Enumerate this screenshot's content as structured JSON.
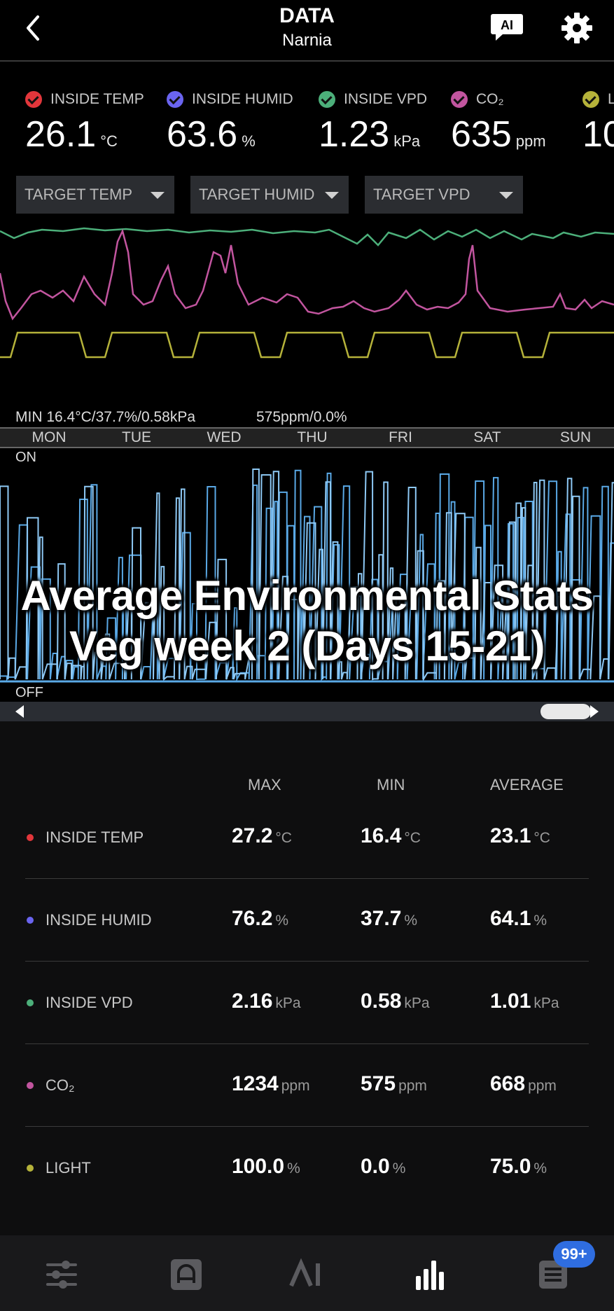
{
  "header": {
    "title": "DATA",
    "subtitle": "Narnia",
    "back_icon": "chevron-left-icon",
    "ai_icon": "ai-chat-icon",
    "settings_icon": "gear-icon"
  },
  "metrics": [
    {
      "label": "INSIDE TEMP",
      "value": "26.1",
      "unit": "°C",
      "color": "#e2363b"
    },
    {
      "label": "INSIDE HUMID",
      "value": "63.6",
      "unit": "%",
      "color": "#6a64f0"
    },
    {
      "label": "INSIDE VPD",
      "value": "1.23",
      "unit": "kPa",
      "color": "#4caf7a"
    },
    {
      "label": "CO₂",
      "value": "635",
      "unit": "ppm",
      "color": "#c2559f"
    },
    {
      "label": "L",
      "value": "10",
      "unit": "",
      "color": "#b5b23a"
    }
  ],
  "targets": [
    {
      "label": "TARGET TEMP"
    },
    {
      "label": "TARGET HUMID"
    },
    {
      "label": "TARGET VPD"
    }
  ],
  "chart": {
    "min_summary": "MIN 16.4°C/37.7%/0.58kPa",
    "min_summary_2": "575ppm/0.0%",
    "days": [
      "MON",
      "TUE",
      "WED",
      "THU",
      "FRI",
      "SAT",
      "SUN"
    ],
    "on_label": "ON",
    "off_label": "OFF"
  },
  "chart_data": {
    "type": "line",
    "categories": [
      "MON",
      "TUE",
      "WED",
      "THU",
      "FRI",
      "SAT",
      "SUN"
    ],
    "series": [
      {
        "name": "INSIDE VPD",
        "color": "#4caf7a"
      },
      {
        "name": "CO₂",
        "color": "#c2559f"
      },
      {
        "name": "LIGHT",
        "color": "#b5b23a"
      }
    ],
    "device_chart": {
      "type": "step",
      "labels": [
        "ON",
        "OFF"
      ],
      "colors": [
        "#5aa9e6",
        "#8ec9f5"
      ]
    }
  },
  "overlay": {
    "line1": "Average Environmental Stats",
    "line2": "Veg week 2 (Days 15-21)"
  },
  "stats": {
    "headers": {
      "max": "MAX",
      "min": "MIN",
      "avg": "AVERAGE"
    },
    "rows": [
      {
        "label": "INSIDE TEMP",
        "color": "#e2363b",
        "max": "27.2",
        "min": "16.4",
        "avg": "23.1",
        "unit": "°C"
      },
      {
        "label": "INSIDE HUMID",
        "color": "#6a64f0",
        "max": "76.2",
        "min": "37.7",
        "avg": "64.1",
        "unit": "%"
      },
      {
        "label": "INSIDE VPD",
        "color": "#4caf7a",
        "max": "2.16",
        "min": "0.58",
        "avg": "1.01",
        "unit": "kPa"
      },
      {
        "label": "CO₂",
        "color": "#c2559f",
        "max": "1234",
        "min": "575",
        "avg": "668",
        "unit": "ppm"
      },
      {
        "label": "LIGHT",
        "color": "#b5b23a",
        "max": "100.0",
        "min": "0.0",
        "avg": "75.0",
        "unit": "%"
      }
    ]
  },
  "bottom_nav": {
    "items": [
      "sliders-icon",
      "controller-icon",
      "ai-icon",
      "bar-chart-icon",
      "list-icon"
    ],
    "badge": "99+"
  }
}
